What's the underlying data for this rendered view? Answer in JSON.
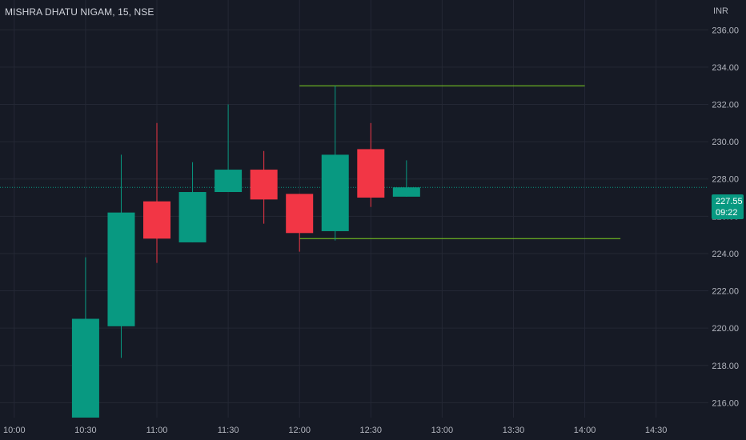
{
  "header": {
    "symbol_title": "MISHRA DHATU NIGAM, 15, NSE",
    "currency": "INR"
  },
  "last_price": {
    "value": "227.55",
    "countdown": "09:22"
  },
  "colors": {
    "background": "#161a25",
    "grid": "#242835",
    "up": "#089981",
    "down": "#f23645",
    "level_line": "#7ed321",
    "price_line": "#089981",
    "axis_text": "#b2b5be"
  },
  "chart_data": {
    "type": "candlestick",
    "title": "MISHRA DHATU NIGAM, 15, NSE",
    "ylabel": "INR",
    "ylim": [
      215.2,
      237.6
    ],
    "xlim": [
      "09:54",
      "14:52"
    ],
    "y_ticks": [
      "216.00",
      "218.00",
      "220.00",
      "222.00",
      "224.00",
      "226.00",
      "228.00",
      "230.00",
      "232.00",
      "234.00",
      "236.00"
    ],
    "x_ticks": [
      "10:00",
      "10:30",
      "11:00",
      "11:30",
      "12:00",
      "12:30",
      "13:00",
      "13:30",
      "14:00",
      "14:30"
    ],
    "candles": [
      {
        "time": "10:30",
        "open": 215.2,
        "high": 223.8,
        "low": 215.2,
        "close": 220.5
      },
      {
        "time": "10:45",
        "open": 220.1,
        "high": 229.3,
        "low": 218.4,
        "close": 226.2
      },
      {
        "time": "11:00",
        "open": 226.8,
        "high": 231.0,
        "low": 223.5,
        "close": 224.8
      },
      {
        "time": "11:15",
        "open": 224.6,
        "high": 228.9,
        "low": 224.6,
        "close": 227.3
      },
      {
        "time": "11:30",
        "open": 227.3,
        "high": 232.0,
        "low": 227.3,
        "close": 228.5
      },
      {
        "time": "11:45",
        "open": 228.5,
        "high": 229.5,
        "low": 225.6,
        "close": 226.9
      },
      {
        "time": "12:00",
        "open": 227.2,
        "high": 227.2,
        "low": 224.1,
        "close": 225.1
      },
      {
        "time": "12:15",
        "open": 225.2,
        "high": 233.0,
        "low": 224.7,
        "close": 229.3
      },
      {
        "time": "12:30",
        "open": 229.6,
        "high": 231.0,
        "low": 226.5,
        "close": 227.0
      },
      {
        "time": "12:45",
        "open": 227.05,
        "high": 229.0,
        "low": 227.05,
        "close": 227.55
      }
    ],
    "horizontal_levels": [
      {
        "price": 233.0,
        "from": "12:00",
        "to": "14:00"
      },
      {
        "price": 224.8,
        "from": "12:00",
        "to": "14:15"
      }
    ],
    "last_price_line": 227.55
  }
}
